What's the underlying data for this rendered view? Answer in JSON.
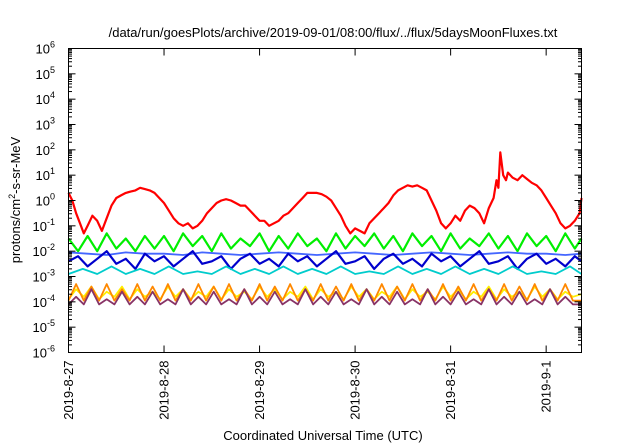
{
  "chart_data": {
    "type": "line",
    "title": "/data/run/goesPlots/archive/2019-09-01/08:00/flux/../flux/5daysMoonFluxes.txt",
    "xlabel": "Coordinated Universal Time (UTC)",
    "ylabel": {
      "prefix": "protons/cm",
      "superscript": "2",
      "suffix": "-s-sr-MeV"
    },
    "yscale": "log",
    "ylim_exponents": [
      -6,
      6
    ],
    "y_ticks": [
      {
        "base": "10",
        "exp": "6"
      },
      {
        "base": "10",
        "exp": "5"
      },
      {
        "base": "10",
        "exp": "4"
      },
      {
        "base": "10",
        "exp": "3"
      },
      {
        "base": "10",
        "exp": "2"
      },
      {
        "base": "10",
        "exp": "1"
      },
      {
        "base": "10",
        "exp": "0"
      },
      {
        "base": "10",
        "exp": "-1"
      },
      {
        "base": "10",
        "exp": "-2"
      },
      {
        "base": "10",
        "exp": "-3"
      },
      {
        "base": "10",
        "exp": "-4"
      },
      {
        "base": "10",
        "exp": "-5"
      },
      {
        "base": "10",
        "exp": "-6"
      }
    ],
    "x_ticks": [
      "2019-8-27",
      "2019-8-28",
      "2019-8-29",
      "2019-8-30",
      "2019-8-31",
      "2019-9-1"
    ],
    "x_tick_days": [
      0,
      1,
      2,
      3,
      4,
      5
    ],
    "xlim_days": [
      0,
      5.37
    ],
    "grid": false,
    "legend": "none",
    "series": [
      {
        "color": "#ff0000",
        "x": [
          0,
          0.04,
          0.08,
          0.12,
          0.16,
          0.2,
          0.25,
          0.3,
          0.35,
          0.4,
          0.45,
          0.5,
          0.55,
          0.6,
          0.65,
          0.7,
          0.75,
          0.8,
          0.85,
          0.9,
          0.95,
          1.0,
          1.05,
          1.1,
          1.15,
          1.2,
          1.25,
          1.3,
          1.35,
          1.4,
          1.45,
          1.5,
          1.55,
          1.6,
          1.65,
          1.7,
          1.75,
          1.8,
          1.85,
          1.9,
          1.95,
          2.0,
          2.05,
          2.1,
          2.15,
          2.2,
          2.25,
          2.3,
          2.35,
          2.4,
          2.45,
          2.5,
          2.55,
          2.6,
          2.65,
          2.7,
          2.75,
          2.8,
          2.85,
          2.9,
          2.95,
          3.0,
          3.05,
          3.1,
          3.15,
          3.2,
          3.25,
          3.3,
          3.35,
          3.4,
          3.45,
          3.5,
          3.55,
          3.6,
          3.65,
          3.7,
          3.75,
          3.8,
          3.85,
          3.9,
          3.95,
          4.0,
          4.05,
          4.1,
          4.15,
          4.2,
          4.25,
          4.3,
          4.35,
          4.4,
          4.45,
          4.48,
          4.5,
          4.52,
          4.55,
          4.58,
          4.6,
          4.65,
          4.7,
          4.75,
          4.8,
          4.85,
          4.9,
          4.95,
          5.0,
          5.05,
          5.1,
          5.15,
          5.2,
          5.25,
          5.3,
          5.35,
          5.37
        ],
        "log10_values": [
          0.3,
          0.0,
          -0.5,
          -0.9,
          -1.3,
          -1.0,
          -0.6,
          -0.8,
          -1.2,
          -0.7,
          -0.2,
          0.1,
          0.2,
          0.3,
          0.35,
          0.4,
          0.5,
          0.45,
          0.4,
          0.3,
          0.1,
          -0.1,
          -0.4,
          -0.7,
          -0.9,
          -1.0,
          -0.9,
          -1.1,
          -1.0,
          -0.8,
          -0.5,
          -0.3,
          -0.1,
          0.0,
          0.05,
          0.0,
          -0.1,
          -0.2,
          -0.2,
          -0.4,
          -0.6,
          -0.8,
          -0.8,
          -1.0,
          -0.9,
          -0.8,
          -0.6,
          -0.5,
          -0.3,
          -0.1,
          0.1,
          0.3,
          0.3,
          0.3,
          0.25,
          0.15,
          0.0,
          -0.3,
          -0.6,
          -1.0,
          -1.3,
          -1.1,
          -1.2,
          -1.3,
          -0.9,
          -0.7,
          -0.5,
          -0.3,
          -0.1,
          0.2,
          0.4,
          0.5,
          0.6,
          0.55,
          0.6,
          0.5,
          0.4,
          0.0,
          -0.4,
          -0.9,
          -1.1,
          -0.9,
          -0.6,
          -0.8,
          -0.4,
          -0.2,
          -0.3,
          -0.5,
          -0.9,
          -0.3,
          0.1,
          0.8,
          0.5,
          1.9,
          1.0,
          0.8,
          1.1,
          0.9,
          0.8,
          1.0,
          0.85,
          0.7,
          0.6,
          0.4,
          0.1,
          -0.2,
          -0.5,
          -0.9,
          -1.1,
          -1.0,
          -0.8,
          -0.5,
          0.1
        ]
      },
      {
        "color": "#00ee00",
        "x": [
          0,
          0.1,
          0.2,
          0.3,
          0.4,
          0.5,
          0.6,
          0.7,
          0.8,
          0.9,
          1.0,
          1.1,
          1.2,
          1.3,
          1.4,
          1.5,
          1.6,
          1.7,
          1.8,
          1.9,
          2.0,
          2.1,
          2.2,
          2.3,
          2.4,
          2.5,
          2.6,
          2.7,
          2.8,
          2.9,
          3.0,
          3.1,
          3.2,
          3.3,
          3.4,
          3.5,
          3.6,
          3.7,
          3.8,
          3.9,
          4.0,
          4.1,
          4.2,
          4.3,
          4.4,
          4.5,
          4.6,
          4.7,
          4.8,
          4.9,
          5.0,
          5.1,
          5.2,
          5.3,
          5.37
        ],
        "log10_values": [
          -1.5,
          -2.0,
          -1.4,
          -2.0,
          -1.3,
          -1.9,
          -1.5,
          -2.0,
          -1.4,
          -1.9,
          -1.4,
          -2.0,
          -1.3,
          -1.8,
          -1.4,
          -2.0,
          -1.3,
          -1.9,
          -1.5,
          -1.8,
          -1.3,
          -2.0,
          -1.4,
          -1.9,
          -1.3,
          -1.8,
          -1.5,
          -2.0,
          -1.3,
          -1.9,
          -1.4,
          -1.8,
          -1.3,
          -1.9,
          -1.4,
          -2.0,
          -1.3,
          -1.8,
          -1.4,
          -2.0,
          -1.3,
          -1.9,
          -1.5,
          -1.8,
          -1.3,
          -1.9,
          -1.4,
          -2.0,
          -1.3,
          -1.8,
          -1.4,
          -2.0,
          -1.3,
          -1.9,
          -1.5
        ]
      },
      {
        "color": "#4466ff",
        "x": [
          0,
          0.2,
          0.4,
          0.6,
          0.8,
          1.0,
          1.2,
          1.4,
          1.6,
          1.8,
          2.0,
          2.2,
          2.4,
          2.6,
          2.8,
          3.0,
          3.2,
          3.4,
          3.6,
          3.8,
          4.0,
          4.2,
          4.4,
          4.6,
          4.8,
          5.0,
          5.2,
          5.37
        ],
        "log10_values": [
          -2.05,
          -2.1,
          -2.15,
          -2.05,
          -2.1,
          -2.1,
          -2.15,
          -2.05,
          -2.1,
          -2.15,
          -2.1,
          -2.05,
          -2.1,
          -2.15,
          -2.1,
          -2.05,
          -2.1,
          -2.15,
          -2.1,
          -2.05,
          -2.1,
          -2.15,
          -2.1,
          -2.05,
          -2.1,
          -2.1,
          -2.15,
          -2.1
        ]
      },
      {
        "color": "#0000cc",
        "x": [
          0,
          0.1,
          0.2,
          0.3,
          0.4,
          0.5,
          0.6,
          0.7,
          0.8,
          0.9,
          1.0,
          1.1,
          1.2,
          1.3,
          1.4,
          1.5,
          1.6,
          1.7,
          1.8,
          1.9,
          2.0,
          2.1,
          2.2,
          2.3,
          2.4,
          2.5,
          2.6,
          2.7,
          2.8,
          2.9,
          3.0,
          3.1,
          3.2,
          3.3,
          3.4,
          3.5,
          3.6,
          3.7,
          3.8,
          3.9,
          4.0,
          4.1,
          4.2,
          4.3,
          4.4,
          4.5,
          4.6,
          4.7,
          4.8,
          4.9,
          5.0,
          5.1,
          5.2,
          5.3,
          5.37
        ],
        "log10_values": [
          -2.4,
          -2.2,
          -2.6,
          -2.3,
          -2.0,
          -2.5,
          -2.3,
          -2.7,
          -2.1,
          -2.4,
          -2.2,
          -2.6,
          -2.3,
          -2.0,
          -2.5,
          -2.4,
          -2.2,
          -2.7,
          -2.3,
          -2.1,
          -2.5,
          -2.3,
          -2.6,
          -2.1,
          -2.4,
          -2.2,
          -2.6,
          -2.3,
          -2.0,
          -2.5,
          -2.4,
          -2.2,
          -2.7,
          -2.3,
          -2.1,
          -2.5,
          -2.3,
          -2.6,
          -2.1,
          -2.4,
          -2.2,
          -2.6,
          -2.3,
          -2.0,
          -2.5,
          -2.4,
          -2.2,
          -2.7,
          -2.3,
          -2.1,
          -2.5,
          -2.3,
          -2.6,
          -2.2,
          -2.4
        ]
      },
      {
        "color": "#00cccc",
        "x": [
          0,
          0.15,
          0.3,
          0.45,
          0.6,
          0.75,
          0.9,
          1.05,
          1.2,
          1.35,
          1.5,
          1.65,
          1.8,
          1.95,
          2.1,
          2.25,
          2.4,
          2.55,
          2.7,
          2.85,
          3.0,
          3.15,
          3.3,
          3.45,
          3.6,
          3.75,
          3.9,
          4.05,
          4.2,
          4.35,
          4.5,
          4.65,
          4.8,
          4.95,
          5.1,
          5.25,
          5.37
        ],
        "log10_values": [
          -2.9,
          -2.7,
          -2.9,
          -2.6,
          -2.9,
          -2.7,
          -2.9,
          -2.6,
          -2.9,
          -2.8,
          -2.9,
          -2.6,
          -2.9,
          -2.7,
          -2.9,
          -2.6,
          -2.9,
          -2.7,
          -2.9,
          -2.6,
          -2.9,
          -2.8,
          -2.9,
          -2.6,
          -2.9,
          -2.7,
          -2.9,
          -2.6,
          -2.9,
          -2.7,
          -2.9,
          -2.6,
          -2.9,
          -2.8,
          -2.9,
          -2.6,
          -2.9
        ]
      },
      {
        "color": "#ffee00",
        "x": [
          0,
          0.08,
          0.16,
          0.24,
          0.32,
          0.4,
          0.48,
          0.56,
          0.64,
          0.72,
          0.8,
          0.88,
          0.96,
          1.04,
          1.12,
          1.2,
          1.28,
          1.36,
          1.44,
          1.52,
          1.6,
          1.68,
          1.76,
          1.84,
          1.92,
          2.0,
          2.08,
          2.16,
          2.24,
          2.32,
          2.4,
          2.48,
          2.56,
          2.64,
          2.72,
          2.8,
          2.88,
          2.96,
          3.04,
          3.12,
          3.2,
          3.28,
          3.36,
          3.44,
          3.52,
          3.6,
          3.68,
          3.76,
          3.84,
          3.92,
          4.0,
          4.08,
          4.16,
          4.24,
          4.32,
          4.4,
          4.48,
          4.56,
          4.64,
          4.72,
          4.8,
          4.88,
          4.96,
          5.04,
          5.12,
          5.2,
          5.28,
          5.37
        ],
        "log10_values": [
          -3.9,
          -3.5,
          -3.8,
          -3.4,
          -3.9,
          -3.6,
          -3.8,
          -3.4,
          -3.9,
          -3.5,
          -3.8,
          -3.6,
          -3.9,
          -3.4,
          -3.8,
          -3.5,
          -3.9,
          -3.6,
          -3.8,
          -3.4,
          -3.9,
          -3.5,
          -3.8,
          -3.6,
          -3.9,
          -3.4,
          -3.8,
          -3.5,
          -3.9,
          -3.6,
          -3.8,
          -3.4,
          -3.9,
          -3.5,
          -3.8,
          -3.6,
          -3.9,
          -3.4,
          -3.8,
          -3.5,
          -3.9,
          -3.6,
          -3.8,
          -3.4,
          -3.9,
          -3.5,
          -3.8,
          -3.6,
          -3.9,
          -3.4,
          -3.8,
          -3.5,
          -3.9,
          -3.6,
          -3.8,
          -3.4,
          -3.9,
          -3.5,
          -3.8,
          -3.6,
          -3.9,
          -3.4,
          -3.8,
          -3.5,
          -3.9,
          -3.6,
          -3.8,
          -3.7
        ]
      },
      {
        "color": "#ff8800",
        "x": [
          0,
          0.08,
          0.16,
          0.24,
          0.32,
          0.4,
          0.48,
          0.56,
          0.64,
          0.72,
          0.8,
          0.88,
          0.96,
          1.04,
          1.12,
          1.2,
          1.28,
          1.36,
          1.44,
          1.52,
          1.6,
          1.68,
          1.76,
          1.84,
          1.92,
          2.0,
          2.08,
          2.16,
          2.24,
          2.32,
          2.4,
          2.48,
          2.56,
          2.64,
          2.72,
          2.8,
          2.88,
          2.96,
          3.04,
          3.12,
          3.2,
          3.28,
          3.36,
          3.44,
          3.52,
          3.6,
          3.68,
          3.76,
          3.84,
          3.92,
          4.0,
          4.08,
          4.16,
          4.24,
          4.32,
          4.4,
          4.48,
          4.56,
          4.64,
          4.72,
          4.8,
          4.88,
          4.96,
          5.04,
          5.12,
          5.2,
          5.28,
          5.37
        ],
        "log10_values": [
          -3.95,
          -3.3,
          -3.95,
          -3.4,
          -3.95,
          -3.3,
          -3.95,
          -3.5,
          -3.95,
          -3.3,
          -3.95,
          -3.4,
          -3.95,
          -3.3,
          -3.95,
          -3.5,
          -3.95,
          -3.3,
          -3.95,
          -3.4,
          -3.95,
          -3.3,
          -3.95,
          -3.5,
          -3.95,
          -3.3,
          -3.95,
          -3.4,
          -3.95,
          -3.3,
          -3.95,
          -3.5,
          -3.95,
          -3.3,
          -3.95,
          -3.4,
          -3.95,
          -3.3,
          -3.95,
          -3.5,
          -3.95,
          -3.3,
          -3.95,
          -3.4,
          -3.95,
          -3.3,
          -3.95,
          -3.5,
          -3.95,
          -3.3,
          -3.95,
          -3.4,
          -3.95,
          -3.3,
          -3.95,
          -3.5,
          -3.95,
          -3.3,
          -3.95,
          -3.4,
          -3.95,
          -3.3,
          -3.95,
          -3.5,
          -3.95,
          -3.3,
          -3.95,
          -3.95
        ]
      },
      {
        "color": "#883366",
        "x": [
          0,
          0.08,
          0.16,
          0.24,
          0.32,
          0.4,
          0.48,
          0.56,
          0.64,
          0.72,
          0.8,
          0.88,
          0.96,
          1.04,
          1.12,
          1.2,
          1.28,
          1.36,
          1.44,
          1.52,
          1.6,
          1.68,
          1.76,
          1.84,
          1.92,
          2.0,
          2.08,
          2.16,
          2.24,
          2.32,
          2.4,
          2.48,
          2.56,
          2.64,
          2.72,
          2.8,
          2.88,
          2.96,
          3.04,
          3.12,
          3.2,
          3.28,
          3.36,
          3.44,
          3.52,
          3.6,
          3.68,
          3.76,
          3.84,
          3.92,
          4.0,
          4.08,
          4.16,
          4.24,
          4.32,
          4.4,
          4.48,
          4.56,
          4.64,
          4.72,
          4.8,
          4.88,
          4.96,
          5.04,
          5.12,
          5.2,
          5.28,
          5.37
        ],
        "log10_values": [
          -4.1,
          -3.8,
          -4.1,
          -3.5,
          -4.1,
          -3.9,
          -4.1,
          -3.6,
          -4.1,
          -3.8,
          -4.1,
          -3.6,
          -4.1,
          -3.9,
          -4.1,
          -3.5,
          -4.1,
          -3.8,
          -4.1,
          -3.6,
          -4.1,
          -3.9,
          -4.1,
          -3.5,
          -4.1,
          -3.8,
          -4.1,
          -3.6,
          -4.1,
          -3.9,
          -4.1,
          -3.5,
          -4.1,
          -3.8,
          -4.1,
          -3.6,
          -4.1,
          -3.9,
          -4.1,
          -3.5,
          -4.1,
          -3.8,
          -4.1,
          -3.6,
          -4.1,
          -3.9,
          -4.1,
          -3.5,
          -4.1,
          -3.8,
          -4.1,
          -3.6,
          -4.1,
          -3.9,
          -4.1,
          -3.5,
          -4.1,
          -3.8,
          -4.1,
          -3.6,
          -4.1,
          -3.9,
          -4.1,
          -3.5,
          -4.1,
          -3.8,
          -4.1,
          -4.1
        ]
      }
    ]
  }
}
